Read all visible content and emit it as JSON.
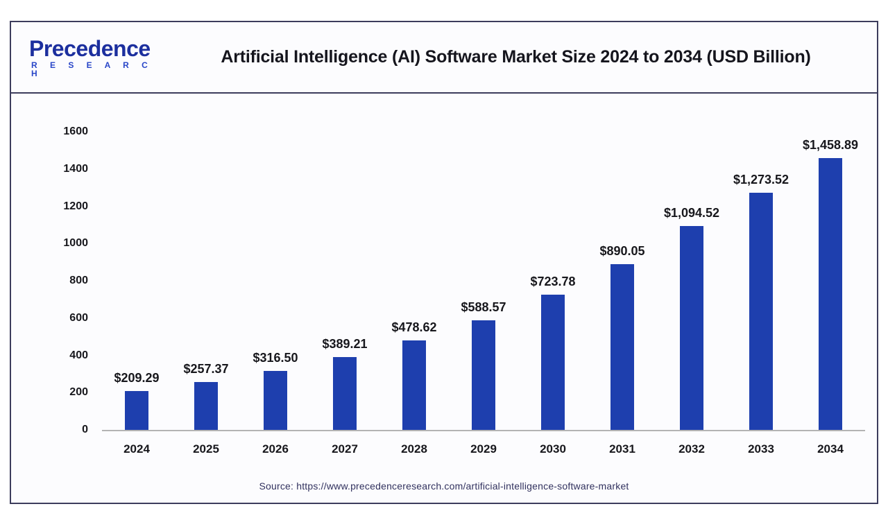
{
  "logo": {
    "name": "Precedence",
    "sub": "R E S E A R C H"
  },
  "header": {
    "title": "Artificial Intelligence (AI) Software Market Size 2024 to 2034 (USD Billion)"
  },
  "source": "Source: https://www.precedenceresearch.com/artificial-intelligence-software-market",
  "colors": {
    "bar": "#1e3fae",
    "card_border": "#3c3c5c",
    "baseline": "#b3b3b3",
    "logo_navy": "#1c2f9e",
    "logo_blue": "#2946c8",
    "source_text": "#31315e"
  },
  "chart_data": {
    "type": "bar",
    "title": "Artificial Intelligence (AI) Software Market Size 2024 to 2034 (USD Billion)",
    "categories": [
      "2024",
      "2025",
      "2026",
      "2027",
      "2028",
      "2029",
      "2030",
      "2031",
      "2032",
      "2033",
      "2034"
    ],
    "values": [
      209.29,
      257.37,
      316.5,
      389.21,
      478.62,
      588.57,
      723.78,
      890.05,
      1094.52,
      1273.52,
      1458.89
    ],
    "labels": [
      "$209.29",
      "$257.37",
      "$316.50",
      "$389.21",
      "$478.62",
      "$588.57",
      "$723.78",
      "$890.05",
      "$1,094.52",
      "$1,273.52",
      "$1,458.89"
    ],
    "xlabel": "",
    "ylabel": "",
    "ylim": [
      0,
      1600
    ],
    "yticks": [
      0,
      200,
      400,
      600,
      800,
      1000,
      1200,
      1400,
      1600
    ],
    "grid": false,
    "legend": null,
    "bar_color": "#1e3fae"
  }
}
